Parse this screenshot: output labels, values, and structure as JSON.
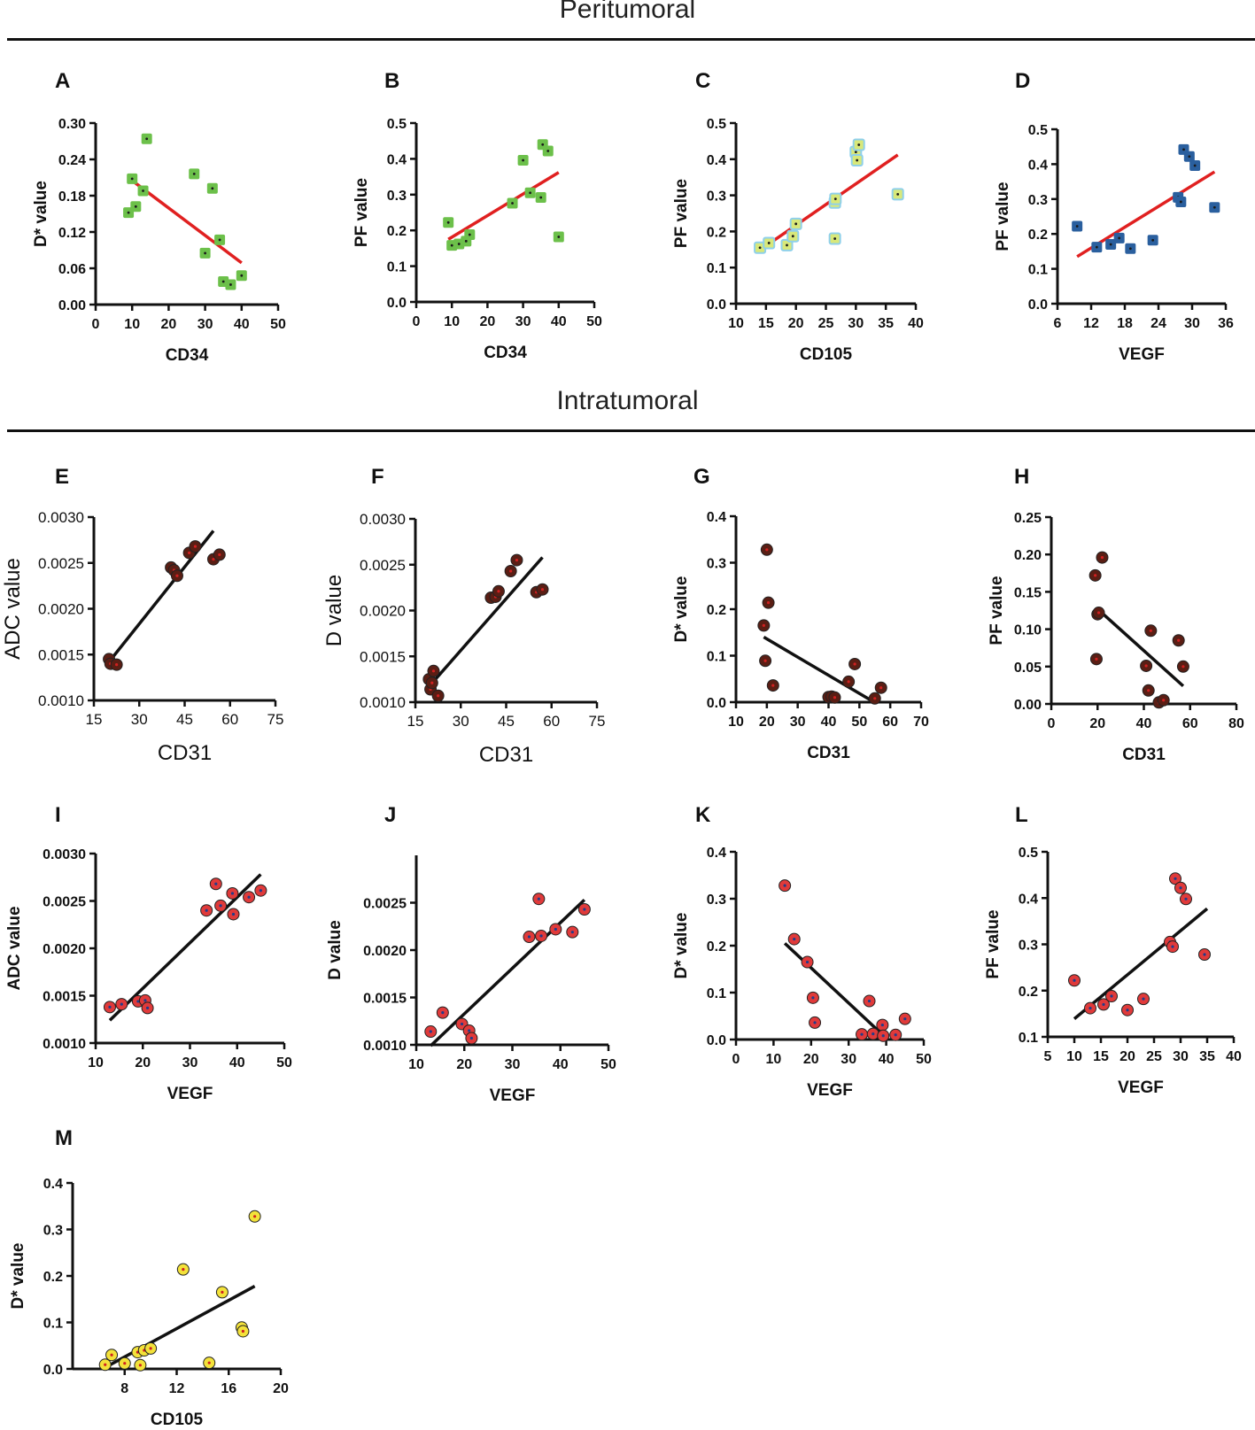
{
  "sections": [
    {
      "title": "Peritumoral",
      "hline": true
    },
    {
      "title": "Intratumoral",
      "hline": true
    }
  ],
  "chart_data": [
    {
      "id": "A",
      "type": "scatter",
      "title": "A",
      "xlabel": "CD34",
      "ylabel": "D* value",
      "xlim": [
        0,
        50
      ],
      "ylim": [
        0,
        0.3
      ],
      "xticks": [
        "0",
        "10",
        "20",
        "30",
        "40",
        "50"
      ],
      "yticks": [
        "0.00",
        "0.06",
        "0.12",
        "0.18",
        "0.24",
        "0.30"
      ],
      "x": [
        9,
        10,
        11,
        13,
        14,
        27,
        30,
        32,
        34,
        35,
        37,
        40
      ],
      "y": [
        0.152,
        0.208,
        0.162,
        0.188,
        0.274,
        0.216,
        0.085,
        0.192,
        0.107,
        0.038,
        0.033,
        0.048
      ],
      "fit": [
        [
          10,
          0.205
        ],
        [
          40,
          0.069
        ]
      ],
      "marker": "square",
      "fill": "#6cc04a",
      "line": "#e02020"
    },
    {
      "id": "B",
      "type": "scatter",
      "title": "B",
      "xlabel": "CD34",
      "ylabel": "PF value",
      "xlim": [
        0,
        50
      ],
      "ylim": [
        0,
        0.5
      ],
      "xticks": [
        "0",
        "10",
        "20",
        "30",
        "40",
        "50"
      ],
      "yticks": [
        "0.0",
        "0.1",
        "0.2",
        "0.3",
        "0.4",
        "0.5"
      ],
      "x": [
        9,
        10,
        12,
        14,
        15,
        27,
        30,
        32,
        35,
        35.5,
        37,
        40
      ],
      "y": [
        0.222,
        0.158,
        0.162,
        0.17,
        0.188,
        0.276,
        0.396,
        0.305,
        0.292,
        0.44,
        0.422,
        0.182
      ],
      "fit": [
        [
          9,
          0.175
        ],
        [
          40,
          0.362
        ]
      ],
      "marker": "square",
      "fill": "#6cc04a",
      "line": "#e02020"
    },
    {
      "id": "C",
      "type": "scatter",
      "title": "C",
      "xlabel": "CD105",
      "ylabel": "PF value",
      "xlim": [
        10,
        40
      ],
      "ylim": [
        0,
        0.5
      ],
      "xticks": [
        "10",
        "15",
        "20",
        "25",
        "30",
        "35",
        "40"
      ],
      "yticks": [
        "0.0",
        "0.1",
        "0.2",
        "0.3",
        "0.4",
        "0.5"
      ],
      "x": [
        14,
        15.5,
        18.5,
        19.5,
        20,
        26.5,
        26.5,
        26.6,
        30,
        30.2,
        30.5,
        37
      ],
      "y": [
        0.155,
        0.168,
        0.162,
        0.187,
        0.221,
        0.18,
        0.28,
        0.29,
        0.42,
        0.397,
        0.44,
        0.303
      ],
      "fit": [
        [
          15,
          0.16
        ],
        [
          37,
          0.412
        ]
      ],
      "marker": "square",
      "fill": "#d8e87a",
      "edge": "#8fd0ea",
      "line": "#e02020"
    },
    {
      "id": "D",
      "type": "scatter",
      "title": "D",
      "xlabel": "VEGF",
      "ylabel": "PF value",
      "xlim": [
        6,
        36
      ],
      "ylim": [
        0,
        0.5
      ],
      "xticks": [
        "6",
        "12",
        "18",
        "24",
        "30",
        "36"
      ],
      "yticks": [
        "0.0",
        "0.1",
        "0.2",
        "0.3",
        "0.4",
        "0.5"
      ],
      "x": [
        9.5,
        13,
        15.5,
        17,
        19,
        23,
        27.5,
        28,
        28.5,
        29.5,
        30.5,
        34
      ],
      "y": [
        0.222,
        0.162,
        0.17,
        0.188,
        0.158,
        0.182,
        0.305,
        0.292,
        0.442,
        0.422,
        0.396,
        0.276
      ],
      "fit": [
        [
          9.5,
          0.135
        ],
        [
          34,
          0.378
        ]
      ],
      "marker": "square",
      "fill": "#2a5f9e",
      "line": "#e02020"
    },
    {
      "id": "E",
      "type": "scatter",
      "title": "E",
      "xlabel": "CD31",
      "ylabel": "ADC value",
      "xlim": [
        15,
        75
      ],
      "ylim": [
        0.001,
        0.003
      ],
      "xticks": [
        "15",
        "30",
        "45",
        "60",
        "75"
      ],
      "yticks": [
        "0.0010",
        "0.0015",
        "0.0020",
        "0.0025",
        "0.0030"
      ],
      "x": [
        20,
        20.5,
        22.5,
        40.5,
        41.5,
        42.5,
        46.5,
        48.5,
        54.5,
        56.5
      ],
      "y": [
        0.00145,
        0.0014,
        0.00139,
        0.00245,
        0.00242,
        0.00236,
        0.00261,
        0.00268,
        0.00254,
        0.00259
      ],
      "fit": [
        [
          19.5,
          0.0014
        ],
        [
          54.5,
          0.00285
        ]
      ],
      "marker": "circle",
      "fill": "#5a1e14",
      "line": "#111111"
    },
    {
      "id": "F",
      "type": "scatter",
      "title": "F",
      "xlabel": "CD31",
      "ylabel": "D value",
      "xlim": [
        15,
        75
      ],
      "ylim": [
        0.001,
        0.003
      ],
      "xticks": [
        "15",
        "30",
        "45",
        "60",
        "75"
      ],
      "yticks": [
        "0.0010",
        "0.0015",
        "0.0020",
        "0.0025",
        "0.0030"
      ],
      "x": [
        19.5,
        20,
        20.5,
        21,
        22.5,
        40,
        41.5,
        42.5,
        46.5,
        48.5,
        55,
        57
      ],
      "y": [
        0.00125,
        0.00114,
        0.00121,
        0.00134,
        0.00107,
        0.00214,
        0.00215,
        0.00221,
        0.00243,
        0.00255,
        0.0022,
        0.00223
      ],
      "fit": [
        [
          19.5,
          0.00117
        ],
        [
          57,
          0.00258
        ]
      ],
      "marker": "circle",
      "fill": "#5a1e14",
      "line": "#111111"
    },
    {
      "id": "G",
      "type": "scatter",
      "title": "G",
      "xlabel": "CD31",
      "ylabel": "D* value",
      "xlim": [
        10,
        70
      ],
      "ylim": [
        0,
        0.4
      ],
      "xticks": [
        "10",
        "20",
        "30",
        "40",
        "50",
        "60",
        "70"
      ],
      "yticks": [
        "0.0",
        "0.1",
        "0.2",
        "0.3",
        "0.4"
      ],
      "x": [
        19,
        19.5,
        20,
        20.5,
        22,
        40,
        41,
        42,
        46.5,
        48.5,
        55,
        57
      ],
      "y": [
        0.165,
        0.089,
        0.328,
        0.214,
        0.036,
        0.011,
        0.012,
        0.01,
        0.044,
        0.082,
        0.008,
        0.031
      ],
      "fit": [
        [
          19,
          0.14
        ],
        [
          54,
          0.003
        ]
      ],
      "marker": "circle",
      "fill": "#5a1e14",
      "line": "#111111"
    },
    {
      "id": "H",
      "type": "scatter",
      "title": "H",
      "xlabel": "CD31",
      "ylabel": "PF value",
      "xlim": [
        0,
        80
      ],
      "ylim": [
        0,
        0.25
      ],
      "xticks": [
        "0",
        "20",
        "40",
        "60",
        "80"
      ],
      "yticks": [
        "0.00",
        "0.05",
        "0.10",
        "0.15",
        "0.20",
        "0.25"
      ],
      "x": [
        19,
        19.5,
        20,
        20.5,
        22,
        41,
        42,
        43,
        46.5,
        48.5,
        55,
        57
      ],
      "y": [
        0.172,
        0.06,
        0.12,
        0.122,
        0.196,
        0.051,
        0.018,
        0.098,
        0.002,
        0.005,
        0.085,
        0.05
      ],
      "fit": [
        [
          20,
          0.127
        ],
        [
          57,
          0.024
        ]
      ],
      "marker": "circle",
      "fill": "#5a1e14",
      "line": "#111111"
    },
    {
      "id": "I",
      "type": "scatter",
      "title": "I",
      "xlabel": "VEGF",
      "ylabel": "ADC value",
      "xlim": [
        10,
        50
      ],
      "ylim": [
        0.001,
        0.003
      ],
      "xticks": [
        "10",
        "20",
        "30",
        "40",
        "50"
      ],
      "yticks": [
        "0.0010",
        "0.0015",
        "0.0020",
        "0.0025",
        "0.0030"
      ],
      "x": [
        13,
        15.5,
        19,
        20.5,
        21,
        33.5,
        35.5,
        36.5,
        39,
        39.2,
        42.5,
        45
      ],
      "y": [
        0.00138,
        0.00141,
        0.00144,
        0.00145,
        0.00137,
        0.0024,
        0.00268,
        0.00245,
        0.00258,
        0.00236,
        0.00254,
        0.00261
      ],
      "fit": [
        [
          13,
          0.00124
        ],
        [
          45,
          0.00278
        ]
      ],
      "marker": "circle",
      "fill": "#e03a3a",
      "line": "#111111"
    },
    {
      "id": "J",
      "type": "scatter",
      "title": "J",
      "xlabel": "VEGF",
      "ylabel": "D value",
      "xlim": [
        10,
        50
      ],
      "ylim": [
        0.001,
        0.003
      ],
      "xticks": [
        "10",
        "20",
        "30",
        "40",
        "50"
      ],
      "yticks": [
        "0.0010",
        "0.0015",
        "0.0020",
        "0.0025"
      ],
      "x": [
        13,
        15.5,
        19.5,
        21,
        21.5,
        33.5,
        35.5,
        36,
        39,
        42.5,
        45
      ],
      "y": [
        0.00114,
        0.00134,
        0.00122,
        0.00115,
        0.00107,
        0.00214,
        0.00254,
        0.00215,
        0.00222,
        0.00219,
        0.00243
      ],
      "fit": [
        [
          13,
          0.00099
        ],
        [
          45,
          0.00253
        ]
      ],
      "marker": "circle",
      "fill": "#e03a3a",
      "line": "#111111"
    },
    {
      "id": "K",
      "type": "scatter",
      "title": "K",
      "xlabel": "VEGF",
      "ylabel": "D* value",
      "xlim": [
        0,
        50
      ],
      "ylim": [
        0,
        0.4
      ],
      "xticks": [
        "0",
        "10",
        "20",
        "30",
        "40",
        "50"
      ],
      "yticks": [
        "0.0",
        "0.1",
        "0.2",
        "0.3",
        "0.4"
      ],
      "x": [
        13,
        15.5,
        19,
        20.5,
        21,
        33.5,
        35.5,
        36.5,
        39,
        39.2,
        42.5,
        45
      ],
      "y": [
        0.328,
        0.214,
        0.165,
        0.089,
        0.036,
        0.011,
        0.082,
        0.012,
        0.031,
        0.008,
        0.01,
        0.044
      ],
      "fit": [
        [
          13,
          0.205
        ],
        [
          40,
          0.003
        ]
      ],
      "marker": "circle",
      "fill": "#e03a3a",
      "line": "#111111"
    },
    {
      "id": "L",
      "type": "scatter",
      "title": "L",
      "xlabel": "VEGF",
      "ylabel": "PF value",
      "xlim": [
        5,
        40
      ],
      "ylim": [
        0.1,
        0.5
      ],
      "xticks": [
        "5",
        "10",
        "15",
        "20",
        "25",
        "30",
        "35",
        "40"
      ],
      "yticks": [
        "0.1",
        "0.2",
        "0.3",
        "0.4",
        "0.5"
      ],
      "x": [
        10,
        13,
        15.5,
        17,
        20,
        23,
        28,
        28.5,
        29,
        30,
        31,
        34.5
      ],
      "y": [
        0.222,
        0.162,
        0.17,
        0.188,
        0.158,
        0.182,
        0.305,
        0.295,
        0.442,
        0.422,
        0.398,
        0.278
      ],
      "fit": [
        [
          10,
          0.139
        ],
        [
          35,
          0.377
        ]
      ],
      "marker": "circle",
      "fill": "#e03a3a",
      "line": "#111111"
    },
    {
      "id": "M",
      "type": "scatter",
      "title": "M",
      "xlabel": "CD105",
      "ylabel": "D* value",
      "xlim": [
        4,
        20
      ],
      "ylim": [
        0,
        0.4
      ],
      "xticks": [
        "8",
        "12",
        "16",
        "20"
      ],
      "yticks": [
        "0.0",
        "0.1",
        "0.2",
        "0.3",
        "0.4"
      ],
      "x": [
        6.5,
        7,
        8,
        9,
        9.2,
        9.5,
        10,
        12.5,
        14.5,
        15.5,
        17,
        17.1,
        18
      ],
      "y": [
        0.009,
        0.03,
        0.012,
        0.036,
        0.008,
        0.04,
        0.044,
        0.214,
        0.013,
        0.165,
        0.089,
        0.081,
        0.328
      ],
      "fit": [
        [
          6.5,
          0.003
        ],
        [
          18,
          0.178
        ]
      ],
      "marker": "circle",
      "fill": "#f3e23a",
      "line": "#111111"
    }
  ]
}
